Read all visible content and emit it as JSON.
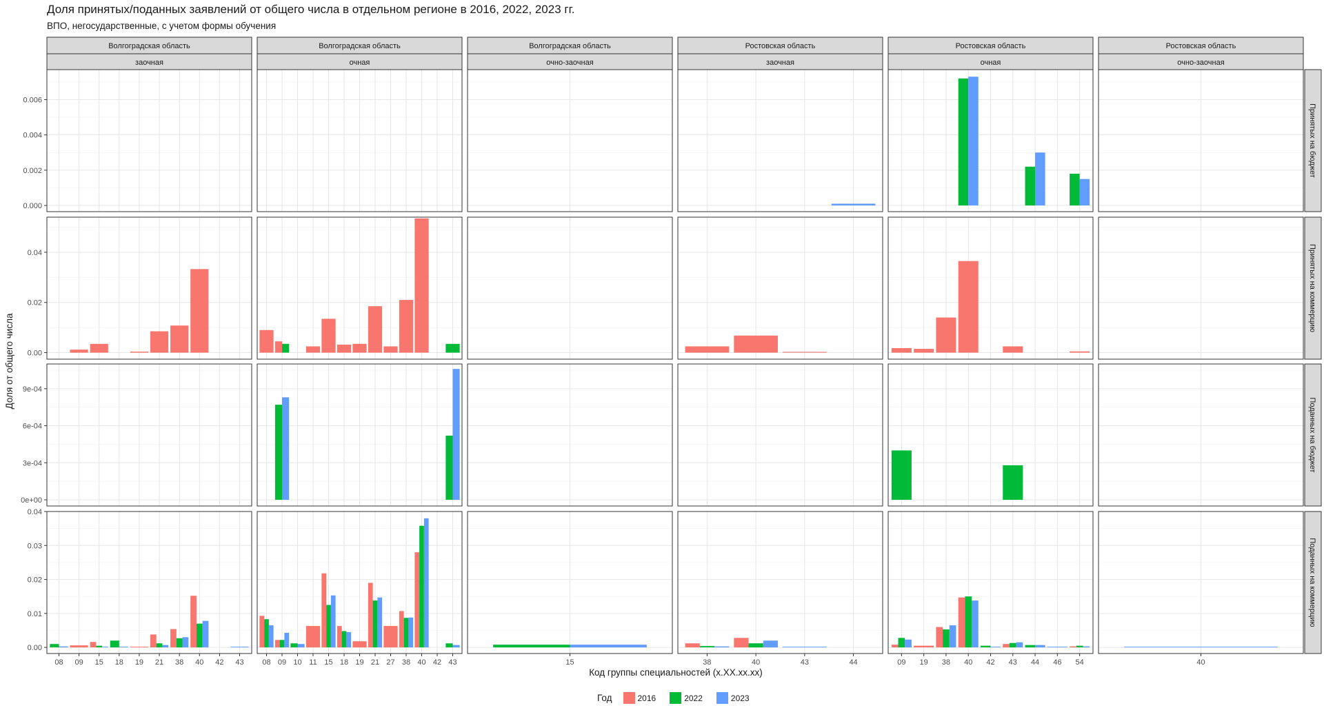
{
  "title": "Доля принятых/поданных заявлений от общего числа в отдельном регионе в 2016, 2022, 2023 гг.",
  "subtitle": "ВПО, негосударственные, с учетом формы обучения",
  "chart_data": {
    "type": "bar",
    "facet_rows": [
      "Принятых на бюджет",
      "Принятых на коммерцию",
      "Поданных на бюджет",
      "Поданных на коммерцию"
    ],
    "facet_cols": [
      {
        "region": "Волгоградская область",
        "form": "заочная",
        "categories": [
          "08",
          "09",
          "15",
          "18",
          "19",
          "21",
          "38",
          "40",
          "42",
          "43"
        ]
      },
      {
        "region": "Волгоградская область",
        "form": "очная",
        "categories": [
          "08",
          "09",
          "10",
          "11",
          "15",
          "18",
          "19",
          "21",
          "27",
          "38",
          "40",
          "42",
          "43"
        ]
      },
      {
        "region": "Волгоградская область",
        "form": "очно-заочная",
        "categories": [
          "15"
        ]
      },
      {
        "region": "Ростовская область",
        "form": "заочная",
        "categories": [
          "38",
          "40",
          "43",
          "44"
        ]
      },
      {
        "region": "Ростовская область",
        "form": "очная",
        "categories": [
          "09",
          "19",
          "38",
          "40",
          "42",
          "43",
          "44",
          "46",
          "54"
        ]
      },
      {
        "region": "Ростовская область",
        "form": "очно-заочная",
        "categories": [
          "40"
        ]
      }
    ],
    "row_axes": [
      {
        "ylim": [
          -0.00035,
          0.0077
        ],
        "ticks": [
          0,
          0.002,
          0.004,
          0.006
        ],
        "tick_labels": [
          "0.000",
          "0.002",
          "0.004",
          "0.006"
        ]
      },
      {
        "ylim": [
          -0.0026,
          0.054
        ],
        "ticks": [
          0,
          0.02,
          0.04
        ],
        "tick_labels": [
          "0.00",
          "0.02",
          "0.04"
        ]
      },
      {
        "ylim": [
          -5e-05,
          0.0011
        ],
        "ticks": [
          0,
          0.0003,
          0.0006,
          0.0009
        ],
        "tick_labels": [
          "0e+00",
          "3e-04",
          "6e-04",
          "9e-04"
        ]
      },
      {
        "ylim": [
          -0.0018,
          0.04
        ],
        "ticks": [
          0,
          0.01,
          0.02,
          0.03,
          0.04
        ],
        "tick_labels": [
          "0.00",
          "0.01",
          "0.02",
          "0.03",
          "0.04"
        ]
      }
    ],
    "series": [
      {
        "name": "2016",
        "color": "#F8766D"
      },
      {
        "name": "2022",
        "color": "#00BA38"
      },
      {
        "name": "2023",
        "color": "#619CFF"
      }
    ],
    "bars": [
      {
        "r": 0,
        "c": 3,
        "cat": "44",
        "years": [
          "2023"
        ],
        "v": 0.0001
      },
      {
        "r": 0,
        "c": 4,
        "cat": "40",
        "years": [
          "2022",
          "2023"
        ],
        "v": [
          0.0072,
          0.0073
        ]
      },
      {
        "r": 0,
        "c": 4,
        "cat": "44",
        "years": [
          "2022",
          "2023"
        ],
        "v": [
          0.0022,
          0.003
        ]
      },
      {
        "r": 0,
        "c": 4,
        "cat": "54",
        "years": [
          "2022",
          "2023"
        ],
        "v": [
          0.0018,
          0.0015
        ]
      },
      {
        "r": 1,
        "c": 0,
        "cat": "09",
        "years": [
          "2016"
        ],
        "v": 0.0012
      },
      {
        "r": 1,
        "c": 0,
        "cat": "15",
        "years": [
          "2016"
        ],
        "v": 0.0035
      },
      {
        "r": 1,
        "c": 0,
        "cat": "19",
        "years": [
          "2016"
        ],
        "v": 0.0004
      },
      {
        "r": 1,
        "c": 0,
        "cat": "21",
        "years": [
          "2016"
        ],
        "v": 0.0085
      },
      {
        "r": 1,
        "c": 0,
        "cat": "38",
        "years": [
          "2016"
        ],
        "v": 0.0108
      },
      {
        "r": 1,
        "c": 0,
        "cat": "40",
        "years": [
          "2016"
        ],
        "v": 0.0333
      },
      {
        "r": 1,
        "c": 1,
        "cat": "08",
        "years": [
          "2016"
        ],
        "v": 0.009
      },
      {
        "r": 1,
        "c": 1,
        "cat": "09",
        "years": [
          "2016",
          "2022"
        ],
        "v": [
          0.0045,
          0.0035
        ]
      },
      {
        "r": 1,
        "c": 1,
        "cat": "11",
        "years": [
          "2016"
        ],
        "v": 0.0025
      },
      {
        "r": 1,
        "c": 1,
        "cat": "15",
        "years": [
          "2016"
        ],
        "v": 0.0135
      },
      {
        "r": 1,
        "c": 1,
        "cat": "18",
        "years": [
          "2016"
        ],
        "v": 0.0032
      },
      {
        "r": 1,
        "c": 1,
        "cat": "19",
        "years": [
          "2016"
        ],
        "v": 0.0035
      },
      {
        "r": 1,
        "c": 1,
        "cat": "21",
        "years": [
          "2016"
        ],
        "v": 0.0185
      },
      {
        "r": 1,
        "c": 1,
        "cat": "27",
        "years": [
          "2016"
        ],
        "v": 0.0025
      },
      {
        "r": 1,
        "c": 1,
        "cat": "38",
        "years": [
          "2016"
        ],
        "v": 0.021
      },
      {
        "r": 1,
        "c": 1,
        "cat": "40",
        "years": [
          "2016"
        ],
        "v": 0.0535
      },
      {
        "r": 1,
        "c": 1,
        "cat": "43",
        "years": [
          "2022"
        ],
        "v": 0.0035
      },
      {
        "r": 1,
        "c": 3,
        "cat": "38",
        "years": [
          "2016"
        ],
        "v": 0.0025
      },
      {
        "r": 1,
        "c": 3,
        "cat": "40",
        "years": [
          "2016"
        ],
        "v": 0.0068
      },
      {
        "r": 1,
        "c": 3,
        "cat": "43",
        "years": [
          "2016"
        ],
        "v": 0.0003
      },
      {
        "r": 1,
        "c": 4,
        "cat": "09",
        "years": [
          "2016"
        ],
        "v": 0.0018
      },
      {
        "r": 1,
        "c": 4,
        "cat": "19",
        "years": [
          "2016"
        ],
        "v": 0.0015
      },
      {
        "r": 1,
        "c": 4,
        "cat": "38",
        "years": [
          "2016"
        ],
        "v": 0.014
      },
      {
        "r": 1,
        "c": 4,
        "cat": "40",
        "years": [
          "2016"
        ],
        "v": 0.0365
      },
      {
        "r": 1,
        "c": 4,
        "cat": "43",
        "years": [
          "2016"
        ],
        "v": 0.0025
      },
      {
        "r": 1,
        "c": 4,
        "cat": "54",
        "years": [
          "2016"
        ],
        "v": 0.0005
      },
      {
        "r": 2,
        "c": 1,
        "cat": "09",
        "years": [
          "2022",
          "2023"
        ],
        "v": [
          0.00077,
          0.00083
        ]
      },
      {
        "r": 2,
        "c": 1,
        "cat": "43",
        "years": [
          "2022",
          "2023"
        ],
        "v": [
          0.00052,
          0.00106
        ]
      },
      {
        "r": 2,
        "c": 4,
        "cat": "09",
        "years": [
          "2022"
        ],
        "v": 0.0004
      },
      {
        "r": 2,
        "c": 4,
        "cat": "43",
        "years": [
          "2022"
        ],
        "v": 0.00028
      },
      {
        "r": 3,
        "c": 0,
        "cat": "08",
        "years": [
          "2022",
          "2023"
        ],
        "v": [
          0.001,
          0.0003
        ]
      },
      {
        "r": 3,
        "c": 0,
        "cat": "09",
        "years": [
          "2016"
        ],
        "v": 0.0006
      },
      {
        "r": 3,
        "c": 0,
        "cat": "15",
        "years": [
          "2016",
          "2022",
          "2023"
        ],
        "v": [
          0.0016,
          0.0005,
          0.0002
        ]
      },
      {
        "r": 3,
        "c": 0,
        "cat": "18",
        "years": [
          "2022",
          "2023"
        ],
        "v": [
          0.002,
          0.0002
        ]
      },
      {
        "r": 3,
        "c": 0,
        "cat": "19",
        "years": [
          "2016"
        ],
        "v": 0.0002
      },
      {
        "r": 3,
        "c": 0,
        "cat": "21",
        "years": [
          "2016",
          "2022",
          "2023"
        ],
        "v": [
          0.0038,
          0.0012,
          0.0007
        ]
      },
      {
        "r": 3,
        "c": 0,
        "cat": "38",
        "years": [
          "2016",
          "2022",
          "2023"
        ],
        "v": [
          0.0054,
          0.0027,
          0.003
        ]
      },
      {
        "r": 3,
        "c": 0,
        "cat": "40",
        "years": [
          "2016",
          "2022",
          "2023"
        ],
        "v": [
          0.0152,
          0.007,
          0.0078
        ]
      },
      {
        "r": 3,
        "c": 0,
        "cat": "43",
        "years": [
          "2023"
        ],
        "v": 0.0002
      },
      {
        "r": 3,
        "c": 1,
        "cat": "08",
        "years": [
          "2016",
          "2022",
          "2023"
        ],
        "v": [
          0.0093,
          0.0083,
          0.0065
        ]
      },
      {
        "r": 3,
        "c": 1,
        "cat": "09",
        "years": [
          "2016",
          "2022",
          "2023"
        ],
        "v": [
          0.0022,
          0.0022,
          0.0043
        ]
      },
      {
        "r": 3,
        "c": 1,
        "cat": "10",
        "years": [
          "2022",
          "2023"
        ],
        "v": [
          0.0012,
          0.001
        ]
      },
      {
        "r": 3,
        "c": 1,
        "cat": "11",
        "years": [
          "2016"
        ],
        "v": 0.0063
      },
      {
        "r": 3,
        "c": 1,
        "cat": "15",
        "years": [
          "2016",
          "2022",
          "2023"
        ],
        "v": [
          0.0218,
          0.0125,
          0.0153
        ]
      },
      {
        "r": 3,
        "c": 1,
        "cat": "18",
        "years": [
          "2016",
          "2022",
          "2023"
        ],
        "v": [
          0.0063,
          0.0048,
          0.0045
        ]
      },
      {
        "r": 3,
        "c": 1,
        "cat": "19",
        "years": [
          "2016"
        ],
        "v": 0.0018
      },
      {
        "r": 3,
        "c": 1,
        "cat": "21",
        "years": [
          "2016",
          "2022",
          "2023"
        ],
        "v": [
          0.019,
          0.0138,
          0.0147
        ]
      },
      {
        "r": 3,
        "c": 1,
        "cat": "27",
        "years": [
          "2016"
        ],
        "v": 0.0063
      },
      {
        "r": 3,
        "c": 1,
        "cat": "38",
        "years": [
          "2016",
          "2022",
          "2023"
        ],
        "v": [
          0.0107,
          0.0087,
          0.0088
        ]
      },
      {
        "r": 3,
        "c": 1,
        "cat": "40",
        "years": [
          "2016",
          "2022",
          "2023"
        ],
        "v": [
          0.028,
          0.0358,
          0.038
        ]
      },
      {
        "r": 3,
        "c": 1,
        "cat": "43",
        "years": [
          "2022",
          "2023"
        ],
        "v": [
          0.0012,
          0.0007
        ]
      },
      {
        "r": 3,
        "c": 2,
        "cat": "15",
        "years": [
          "2022",
          "2023"
        ],
        "v": [
          0.0008,
          0.0008
        ]
      },
      {
        "r": 3,
        "c": 3,
        "cat": "38",
        "years": [
          "2016",
          "2022",
          "2023"
        ],
        "v": [
          0.0012,
          0.0004,
          0.0003
        ]
      },
      {
        "r": 3,
        "c": 3,
        "cat": "40",
        "years": [
          "2016",
          "2022",
          "2023"
        ],
        "v": [
          0.0028,
          0.0012,
          0.002
        ]
      },
      {
        "r": 3,
        "c": 3,
        "cat": "43",
        "years": [
          "2023"
        ],
        "v": 0.0002
      },
      {
        "r": 3,
        "c": 4,
        "cat": "09",
        "years": [
          "2016",
          "2022",
          "2023"
        ],
        "v": [
          0.0008,
          0.0028,
          0.0023
        ]
      },
      {
        "r": 3,
        "c": 4,
        "cat": "19",
        "years": [
          "2016"
        ],
        "v": 0.0005
      },
      {
        "r": 3,
        "c": 4,
        "cat": "38",
        "years": [
          "2016",
          "2022",
          "2023"
        ],
        "v": [
          0.006,
          0.0053,
          0.0065
        ]
      },
      {
        "r": 3,
        "c": 4,
        "cat": "40",
        "years": [
          "2016",
          "2022",
          "2023"
        ],
        "v": [
          0.0147,
          0.015,
          0.0138
        ]
      },
      {
        "r": 3,
        "c": 4,
        "cat": "42",
        "years": [
          "2022",
          "2023"
        ],
        "v": [
          0.0005,
          0.0002
        ]
      },
      {
        "r": 3,
        "c": 4,
        "cat": "43",
        "years": [
          "2016",
          "2022",
          "2023"
        ],
        "v": [
          0.001,
          0.0013,
          0.0015
        ]
      },
      {
        "r": 3,
        "c": 4,
        "cat": "44",
        "years": [
          "2022",
          "2023"
        ],
        "v": [
          0.0007,
          0.0007
        ]
      },
      {
        "r": 3,
        "c": 4,
        "cat": "46",
        "years": [
          "2023"
        ],
        "v": 0.0002
      },
      {
        "r": 3,
        "c": 4,
        "cat": "54",
        "years": [
          "2016",
          "2022",
          "2023"
        ],
        "v": [
          0.0003,
          0.0005,
          0.0003
        ]
      },
      {
        "r": 3,
        "c": 5,
        "cat": "40",
        "years": [
          "2023"
        ],
        "v": 0.0002
      }
    ],
    "xlabel": "Код группы специальностей (x.XX.xx.xx)",
    "ylabel": "Доля от общего числа",
    "legend_title": "Год",
    "legend_position": "bottom",
    "grid": true
  }
}
